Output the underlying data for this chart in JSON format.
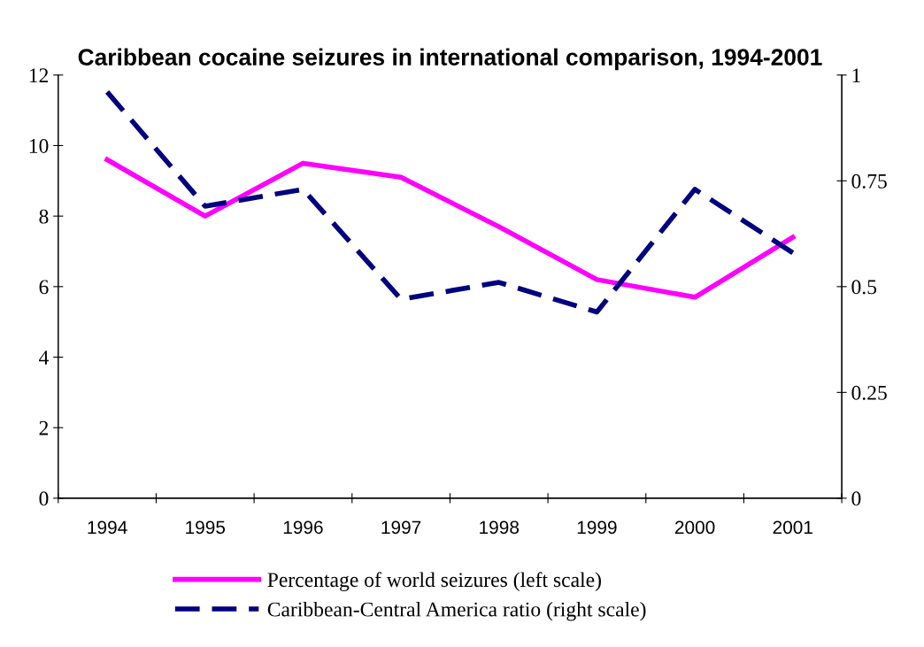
{
  "chart_data": {
    "type": "line",
    "title": "Caribbean cocaine seizures in international comparison, 1994-2001",
    "categories": [
      "1994",
      "1995",
      "1996",
      "1997",
      "1998",
      "1999",
      "2000",
      "2001"
    ],
    "series": [
      {
        "name": "Percentage of world seizures (left scale)",
        "color": "#ff00ff",
        "line_style": "solid",
        "values": [
          9.6,
          8.0,
          9.5,
          9.1,
          7.7,
          6.2,
          5.7,
          7.4
        ]
      },
      {
        "name": "Caribbean-Central America ratio (right scale)",
        "color": "#000080",
        "line_style": "dashed",
        "axis": "y2",
        "values": [
          0.96,
          0.69,
          0.73,
          0.47,
          0.51,
          0.44,
          0.73,
          0.58
        ]
      }
    ],
    "ylim": [
      0,
      12
    ],
    "yticks": [
      0,
      2,
      4,
      6,
      8,
      10,
      12
    ],
    "y2lim": [
      0,
      1
    ],
    "y2ticks": [
      0,
      0.25,
      0.5,
      0.75,
      1
    ],
    "grid": false,
    "legend": "bottom",
    "marker": "none"
  }
}
